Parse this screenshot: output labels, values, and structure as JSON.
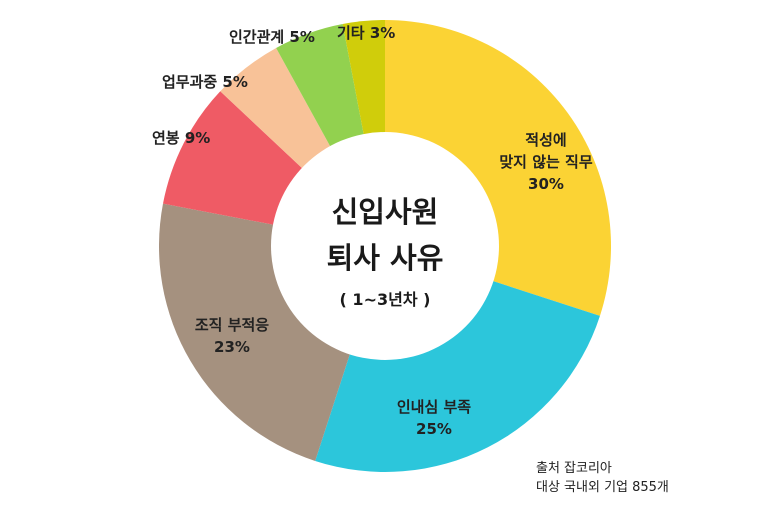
{
  "chart_data": {
    "type": "pie",
    "title": [
      "신입사원",
      "퇴사 사유"
    ],
    "subtitle": "( 1~3년차 )",
    "slices": [
      {
        "label": [
          "적성에",
          "맞지 않는 직무"
        ],
        "value": 30,
        "value_label": "30%",
        "color": "#FBD334"
      },
      {
        "label": [
          "인내심 부족"
        ],
        "value": 25,
        "value_label": "25%",
        "color": "#2CC6DB"
      },
      {
        "label": [
          "조직 부적응"
        ],
        "value": 23,
        "value_label": "23%",
        "color": "#A5917F"
      },
      {
        "label": [
          "연봉"
        ],
        "value": 9,
        "value_label": "9%",
        "color": "#EF5B65"
      },
      {
        "label": [
          "업무과중"
        ],
        "value": 5,
        "value_label": "5%",
        "color": "#F8C298"
      },
      {
        "label": [
          "인간관계"
        ],
        "value": 5,
        "value_label": "5%",
        "color": "#92D14F"
      },
      {
        "label": [
          "기타"
        ],
        "value": 3,
        "value_label": "3%",
        "color": "#D0CD0B"
      }
    ]
  },
  "source": {
    "line1": "출처 잡코리아",
    "line2": "대상 국내외 기업 855개"
  }
}
